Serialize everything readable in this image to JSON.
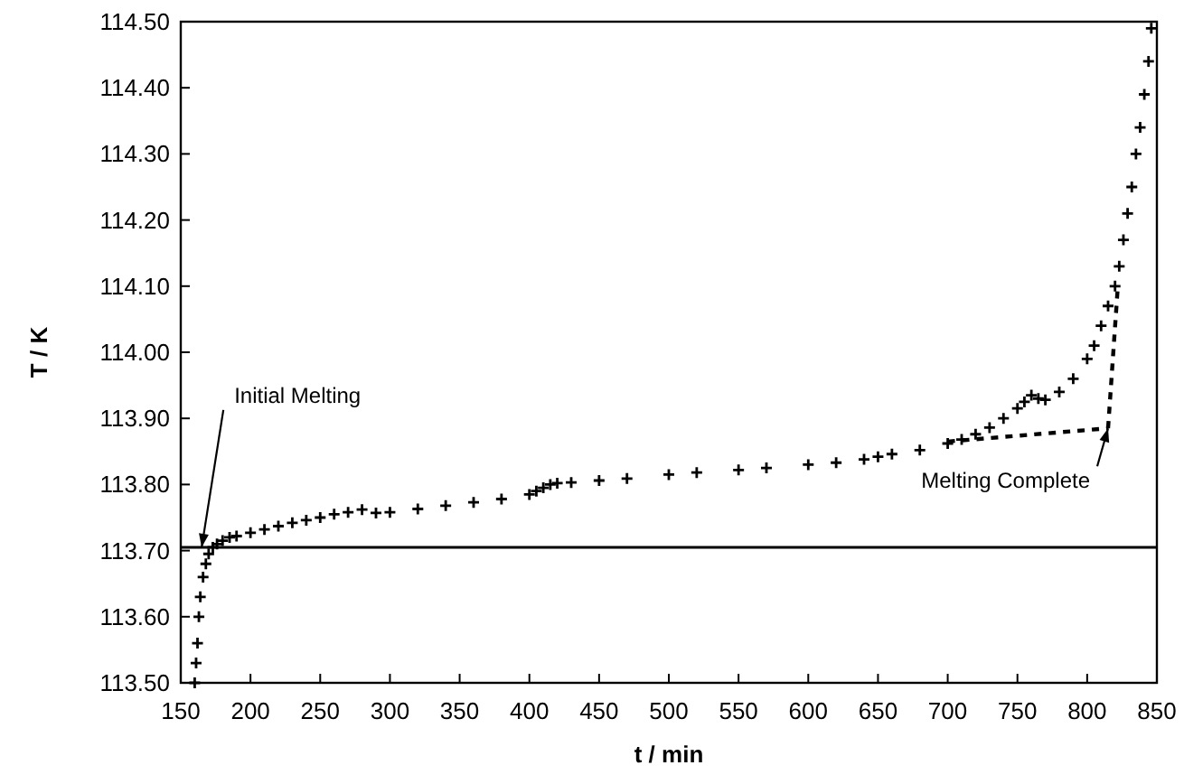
{
  "chart_data": {
    "type": "scatter",
    "xlabel": "t / min",
    "ylabel": "T / K",
    "xlim": [
      150,
      850
    ],
    "xticks": [
      150,
      200,
      250,
      300,
      350,
      400,
      450,
      500,
      550,
      600,
      650,
      700,
      750,
      800,
      850
    ],
    "ylim": [
      113.5,
      114.5
    ],
    "yticks": [
      {
        "value": 113.5,
        "label": "113.50"
      },
      {
        "value": 113.6,
        "label": "113.60"
      },
      {
        "value": 113.7,
        "label": "113.70"
      },
      {
        "value": 113.8,
        "label": "113.80"
      },
      {
        "value": 113.9,
        "label": "113.90"
      },
      {
        "value": 114,
        "label": "114.00"
      },
      {
        "value": 114.1,
        "label": "114.10"
      },
      {
        "value": 114.2,
        "label": "114.20"
      },
      {
        "value": 114.3,
        "label": "114.30"
      },
      {
        "value": 114.4,
        "label": "114.40"
      },
      {
        "value": 114.5,
        "label": "114.50"
      }
    ],
    "grid": false,
    "marker": "cross",
    "series": [
      {
        "color": "#000000",
        "x": [
          160,
          161,
          162,
          163,
          164,
          166,
          168,
          170,
          173,
          176,
          180,
          185,
          190,
          200,
          210,
          220,
          230,
          240,
          250,
          260,
          270,
          280,
          290,
          300,
          320,
          340,
          360,
          380,
          400,
          405,
          410,
          415,
          420,
          430,
          450,
          470,
          500,
          520,
          550,
          570,
          600,
          620,
          640,
          650,
          660,
          680,
          700,
          710,
          720,
          730,
          740,
          750,
          755,
          760,
          765,
          770,
          780,
          790,
          800,
          805,
          810,
          815,
          820,
          823,
          826,
          829,
          832,
          835,
          838,
          841,
          844,
          846
        ],
        "values": [
          113.5,
          113.53,
          113.56,
          113.6,
          113.63,
          113.66,
          113.68,
          113.695,
          113.705,
          113.71,
          113.715,
          113.72,
          113.722,
          113.727,
          113.732,
          113.737,
          113.742,
          113.746,
          113.75,
          113.755,
          113.758,
          113.762,
          113.757,
          113.758,
          113.763,
          113.768,
          113.773,
          113.778,
          113.785,
          113.79,
          113.795,
          113.8,
          113.802,
          113.803,
          113.806,
          113.809,
          113.815,
          113.818,
          113.822,
          113.825,
          113.83,
          113.833,
          113.838,
          113.842,
          113.846,
          113.852,
          113.862,
          113.868,
          113.876,
          113.886,
          113.9,
          113.915,
          113.925,
          113.935,
          113.93,
          113.928,
          113.94,
          113.96,
          113.99,
          114.01,
          114.04,
          114.07,
          114.1,
          114.13,
          114.17,
          114.21,
          114.25,
          114.3,
          114.34,
          114.39,
          114.44,
          114.49
        ]
      },
      {
        "type": "line",
        "color": "#000000",
        "marker": "none",
        "line_style": "dashed",
        "x": [
          700,
          815
        ],
        "values": [
          113.865,
          113.885
        ]
      },
      {
        "type": "line",
        "color": "#000000",
        "marker": "none",
        "line_style": "dashed",
        "x": [
          815,
          822
        ],
        "values": [
          113.885,
          114.1
        ]
      }
    ],
    "ref_lines": [
      {
        "axis": "y",
        "value": 113.705,
        "color": "#000000",
        "line_style": "solid"
      }
    ],
    "annotations": [
      {
        "text": "Initial Melting",
        "x": 165,
        "y": 113.705
      },
      {
        "text": "Melting Complete",
        "x": 815,
        "y": 113.885
      }
    ]
  }
}
